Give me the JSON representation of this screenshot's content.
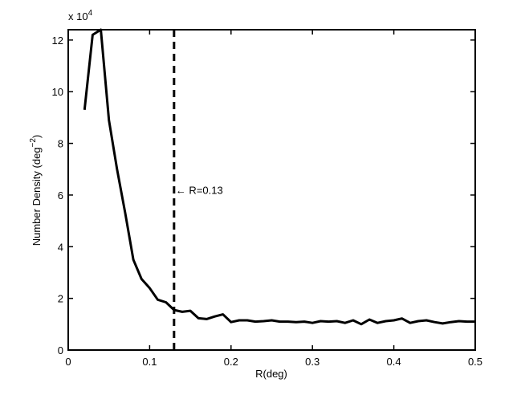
{
  "chart_data": {
    "type": "line",
    "xlabel": "R(deg)",
    "ylabel": "Number Density (deg",
    "ylabel_sup": "−2",
    "ylabel_tail": ")",
    "y_multiplier": "x 10",
    "y_multiplier_exp": "4",
    "xlim": [
      0,
      0.5
    ],
    "ylim": [
      0,
      12.4
    ],
    "x_ticks": [
      0,
      0.1,
      0.2,
      0.3,
      0.4,
      0.5
    ],
    "x_tick_labels": [
      "0",
      "0.1",
      "0.2",
      "0.3",
      "0.4",
      "0.5"
    ],
    "y_ticks": [
      0,
      2,
      4,
      6,
      8,
      10,
      12
    ],
    "y_tick_labels": [
      "0",
      "2",
      "4",
      "6",
      "8",
      "10",
      "12"
    ],
    "grid": false,
    "series": [
      {
        "x": [
          0.02,
          0.03,
          0.04,
          0.05,
          0.06,
          0.07,
          0.08,
          0.09,
          0.1,
          0.11,
          0.12,
          0.13,
          0.14,
          0.15,
          0.16,
          0.17,
          0.18,
          0.19,
          0.2,
          0.21,
          0.22,
          0.23,
          0.24,
          0.25,
          0.26,
          0.27,
          0.28,
          0.29,
          0.3,
          0.31,
          0.32,
          0.33,
          0.34,
          0.35,
          0.36,
          0.37,
          0.38,
          0.39,
          0.4,
          0.41,
          0.42,
          0.43,
          0.44,
          0.45,
          0.46,
          0.47,
          0.48,
          0.49,
          0.5
        ],
        "y": [
          9.3,
          12.2,
          12.4,
          8.9,
          7.0,
          5.3,
          3.5,
          2.75,
          2.4,
          1.95,
          1.85,
          1.55,
          1.48,
          1.52,
          1.23,
          1.2,
          1.3,
          1.38,
          1.08,
          1.15,
          1.15,
          1.1,
          1.12,
          1.15,
          1.1,
          1.1,
          1.08,
          1.1,
          1.05,
          1.12,
          1.1,
          1.12,
          1.05,
          1.15,
          1.0,
          1.18,
          1.05,
          1.12,
          1.15,
          1.22,
          1.05,
          1.12,
          1.15,
          1.08,
          1.03,
          1.08,
          1.12,
          1.1,
          1.1
        ]
      }
    ],
    "vline": {
      "x": 0.13,
      "style": "dashed"
    },
    "annotation": {
      "text": "← R=0.13",
      "x": 0.13,
      "y": 6.2
    }
  }
}
